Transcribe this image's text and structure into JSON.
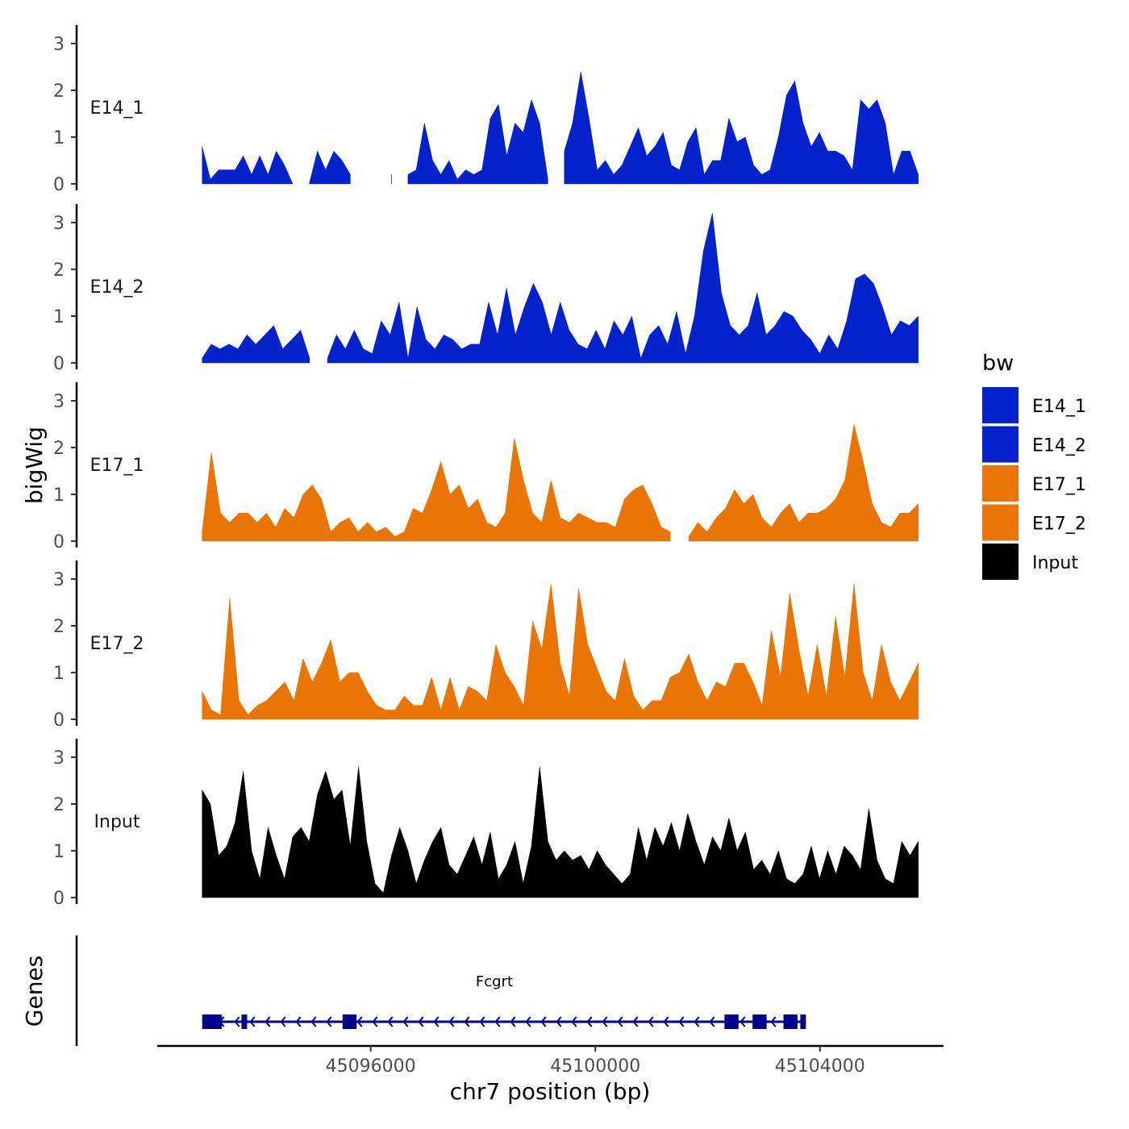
{
  "chart_data": {
    "type": "area",
    "xlabel": "chr7 position (bp)",
    "ylabel": "bigWig",
    "genes_axis_label": "Genes",
    "chrom": "chr7",
    "xlim": [
      45092200,
      45106200
    ],
    "x_ticks": [
      45096000,
      45100000,
      45104000
    ],
    "x_tick_labels": [
      "45096000",
      "45100000",
      "45104000"
    ],
    "ylim": [
      0,
      3.3
    ],
    "y_ticks": [
      0,
      1,
      2,
      3
    ],
    "y_tick_labels": [
      "0",
      "1",
      "2",
      "3"
    ],
    "legend": {
      "title": "bw",
      "position": "right",
      "entries": [
        {
          "label": "E14_1",
          "color": "#0422CC"
        },
        {
          "label": "E14_2",
          "color": "#0422CC"
        },
        {
          "label": "E17_1",
          "color": "#E87504"
        },
        {
          "label": "E17_2",
          "color": "#E87504"
        },
        {
          "label": "Input",
          "color": "#000000"
        }
      ]
    },
    "series": [
      {
        "name": "E14_1",
        "color": "#0422CC",
        "x_start": 45093000,
        "x_end": 45105750,
        "values": [
          0.8,
          0.1,
          0.3,
          0.3,
          0.3,
          0.6,
          0.2,
          0.6,
          0.2,
          0.7,
          0.4,
          0.0,
          null,
          0.0,
          0.7,
          0.3,
          0.7,
          0.5,
          0.2,
          null,
          null,
          null,
          null,
          0.2,
          null,
          0.2,
          0.3,
          1.3,
          0.5,
          0.2,
          0.5,
          0.1,
          0.3,
          0.2,
          0.3,
          1.4,
          1.7,
          0.6,
          1.3,
          1.1,
          1.8,
          1.3,
          0.1,
          null,
          0.7,
          1.3,
          2.4,
          1.4,
          0.3,
          0.5,
          0.2,
          0.4,
          0.8,
          1.2,
          0.6,
          0.8,
          1.1,
          0.4,
          0.3,
          0.9,
          1.2,
          0.2,
          0.5,
          0.5,
          1.4,
          0.9,
          1.0,
          0.4,
          0.2,
          0.3,
          1.0,
          1.9,
          2.2,
          1.3,
          0.8,
          1.1,
          0.7,
          0.7,
          0.6,
          0.3,
          1.8,
          1.6,
          1.8,
          1.3,
          0.2,
          0.7,
          0.7,
          0.2
        ],
        "display": "area"
      },
      {
        "name": "E14_2",
        "color": "#0422CC",
        "x_start": 45093000,
        "x_end": 45105750,
        "values": [
          0.1,
          0.4,
          0.3,
          0.4,
          0.3,
          0.6,
          0.4,
          0.6,
          0.8,
          0.3,
          0.5,
          0.7,
          0.1,
          null,
          0.1,
          0.6,
          0.3,
          0.7,
          0.3,
          0.2,
          0.9,
          0.6,
          1.3,
          0.1,
          1.2,
          0.5,
          0.3,
          0.6,
          0.5,
          0.3,
          0.4,
          0.4,
          1.3,
          0.6,
          1.6,
          0.6,
          1.2,
          1.7,
          1.3,
          0.6,
          1.3,
          0.7,
          0.4,
          0.3,
          0.7,
          0.3,
          0.9,
          0.6,
          1.0,
          0.1,
          0.6,
          0.8,
          0.4,
          1.1,
          0.2,
          1.0,
          2.4,
          3.2,
          1.5,
          0.8,
          0.6,
          0.8,
          1.5,
          0.6,
          0.8,
          1.1,
          1.0,
          0.7,
          0.5,
          0.2,
          0.6,
          0.3,
          0.9,
          1.8,
          1.9,
          1.7,
          1.2,
          0.6,
          0.9,
          0.8,
          1.0
        ],
        "display": "area"
      },
      {
        "name": "E17_1",
        "color": "#E87504",
        "x_start": 45093000,
        "x_end": 45105750,
        "values": [
          0.2,
          1.9,
          0.6,
          0.4,
          0.6,
          0.6,
          0.4,
          0.6,
          0.3,
          0.7,
          0.5,
          1.0,
          1.2,
          0.9,
          0.2,
          0.4,
          0.5,
          0.2,
          0.4,
          0.2,
          0.3,
          0.1,
          0.2,
          0.7,
          0.6,
          1.1,
          1.7,
          1.0,
          1.2,
          0.7,
          0.9,
          0.4,
          0.3,
          0.6,
          2.2,
          1.3,
          0.6,
          0.4,
          1.3,
          0.5,
          0.4,
          0.6,
          0.5,
          0.4,
          0.4,
          0.3,
          0.9,
          1.1,
          1.2,
          0.8,
          0.3,
          0.2,
          null,
          0.1,
          0.4,
          0.2,
          0.5,
          0.7,
          1.1,
          0.8,
          1.0,
          0.5,
          0.3,
          0.6,
          0.8,
          0.4,
          0.6,
          0.6,
          0.7,
          0.9,
          1.3,
          2.5,
          1.7,
          0.8,
          0.4,
          0.3,
          0.6,
          0.6,
          0.8
        ],
        "display": "area"
      },
      {
        "name": "E17_2",
        "color": "#E87504",
        "x_start": 45093000,
        "x_end": 45105750,
        "values": [
          0.6,
          0.2,
          0.1,
          2.6,
          0.4,
          0.1,
          0.3,
          0.4,
          0.6,
          0.8,
          0.4,
          1.3,
          0.8,
          1.2,
          1.7,
          0.8,
          1.0,
          1.0,
          0.6,
          0.3,
          0.2,
          0.2,
          0.5,
          0.3,
          0.3,
          0.9,
          0.2,
          0.9,
          0.2,
          0.7,
          0.6,
          0.4,
          1.6,
          1.0,
          0.7,
          0.3,
          2.1,
          1.5,
          2.9,
          1.2,
          0.5,
          2.8,
          1.6,
          1.1,
          0.6,
          0.4,
          1.3,
          0.5,
          0.2,
          0.4,
          0.4,
          0.9,
          1.0,
          1.4,
          0.8,
          0.4,
          0.8,
          0.7,
          1.2,
          1.2,
          0.8,
          0.3,
          1.9,
          0.9,
          2.7,
          1.5,
          0.5,
          1.6,
          0.5,
          2.2,
          0.9,
          2.9,
          1.0,
          0.4,
          1.6,
          0.8,
          0.4,
          0.8,
          1.2
        ],
        "display": "area"
      },
      {
        "name": "Input",
        "color": "#000000",
        "x_start": 45093000,
        "x_end": 45105750,
        "values": [
          2.3,
          2.0,
          0.9,
          1.1,
          1.6,
          2.7,
          1.0,
          0.4,
          1.5,
          0.9,
          0.4,
          1.3,
          1.5,
          1.2,
          2.2,
          2.7,
          2.1,
          2.3,
          1.1,
          2.8,
          1.2,
          0.3,
          0.1,
          0.9,
          1.5,
          1.0,
          0.3,
          0.8,
          1.2,
          1.5,
          0.7,
          0.5,
          0.9,
          1.3,
          0.7,
          1.4,
          0.4,
          0.7,
          1.2,
          0.3,
          1.1,
          2.8,
          1.2,
          0.8,
          1.0,
          0.8,
          0.9,
          0.6,
          1.0,
          0.7,
          0.5,
          0.3,
          0.5,
          1.5,
          0.8,
          1.5,
          1.1,
          1.6,
          1.0,
          1.8,
          1.2,
          0.7,
          1.3,
          1.0,
          1.7,
          1.0,
          1.4,
          0.6,
          0.8,
          0.5,
          1.0,
          0.4,
          0.3,
          0.5,
          1.1,
          0.4,
          1.0,
          0.5,
          1.1,
          0.9,
          0.6,
          1.9,
          0.8,
          0.4,
          0.3,
          1.2,
          0.9,
          1.2
        ],
        "display": "area"
      }
    ],
    "genes": [
      {
        "name": "Fcgrt",
        "strand": "-",
        "start": 45093000,
        "end": 45103750,
        "exons": [
          [
            45093000,
            45093350
          ],
          [
            45093700,
            45093800
          ],
          [
            45095500,
            45095750
          ],
          [
            45102300,
            45102550
          ],
          [
            45102800,
            45103050
          ],
          [
            45103350,
            45103600
          ],
          [
            45103650,
            45103750
          ]
        ]
      }
    ]
  }
}
